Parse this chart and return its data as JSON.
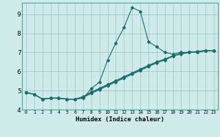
{
  "title": "",
  "xlabel": "Humidex (Indice chaleur)",
  "ylabel": "",
  "background_color": "#ceeaea",
  "grid_color": "#a8c8c8",
  "line_color": "#1a6e6e",
  "xlim": [
    -0.5,
    23.5
  ],
  "ylim": [
    4.0,
    9.6
  ],
  "yticks": [
    4,
    5,
    6,
    7,
    8,
    9
  ],
  "xtick_labels": [
    "0",
    "1",
    "2",
    "3",
    "4",
    "5",
    "6",
    "7",
    "8",
    "9",
    "10",
    "11",
    "12",
    "13",
    "14",
    "15",
    "16",
    "17",
    "18",
    "19",
    "20",
    "21",
    "22",
    "23"
  ],
  "series": [
    [
      4.9,
      4.8,
      4.55,
      4.6,
      4.6,
      4.55,
      4.55,
      4.6,
      5.1,
      5.45,
      6.6,
      7.5,
      8.3,
      9.35,
      9.15,
      7.55,
      7.3,
      7.0,
      6.9,
      7.0,
      7.0,
      7.05,
      7.1,
      7.1
    ],
    [
      4.9,
      4.8,
      4.55,
      4.6,
      4.6,
      4.55,
      4.55,
      4.65,
      4.85,
      5.05,
      5.25,
      5.45,
      5.65,
      5.85,
      6.05,
      6.25,
      6.45,
      6.6,
      6.8,
      6.92,
      7.0,
      7.02,
      7.08,
      7.1
    ],
    [
      4.9,
      4.8,
      4.55,
      4.6,
      4.6,
      4.55,
      4.55,
      4.68,
      4.92,
      5.12,
      5.32,
      5.52,
      5.72,
      5.92,
      6.12,
      6.32,
      6.5,
      6.65,
      6.82,
      6.95,
      7.0,
      7.03,
      7.09,
      7.1
    ],
    [
      4.9,
      4.8,
      4.55,
      4.6,
      4.6,
      4.55,
      4.55,
      4.62,
      4.88,
      5.08,
      5.28,
      5.5,
      5.7,
      5.9,
      6.08,
      6.28,
      6.48,
      6.62,
      6.8,
      6.93,
      7.0,
      7.02,
      7.08,
      7.1
    ]
  ]
}
